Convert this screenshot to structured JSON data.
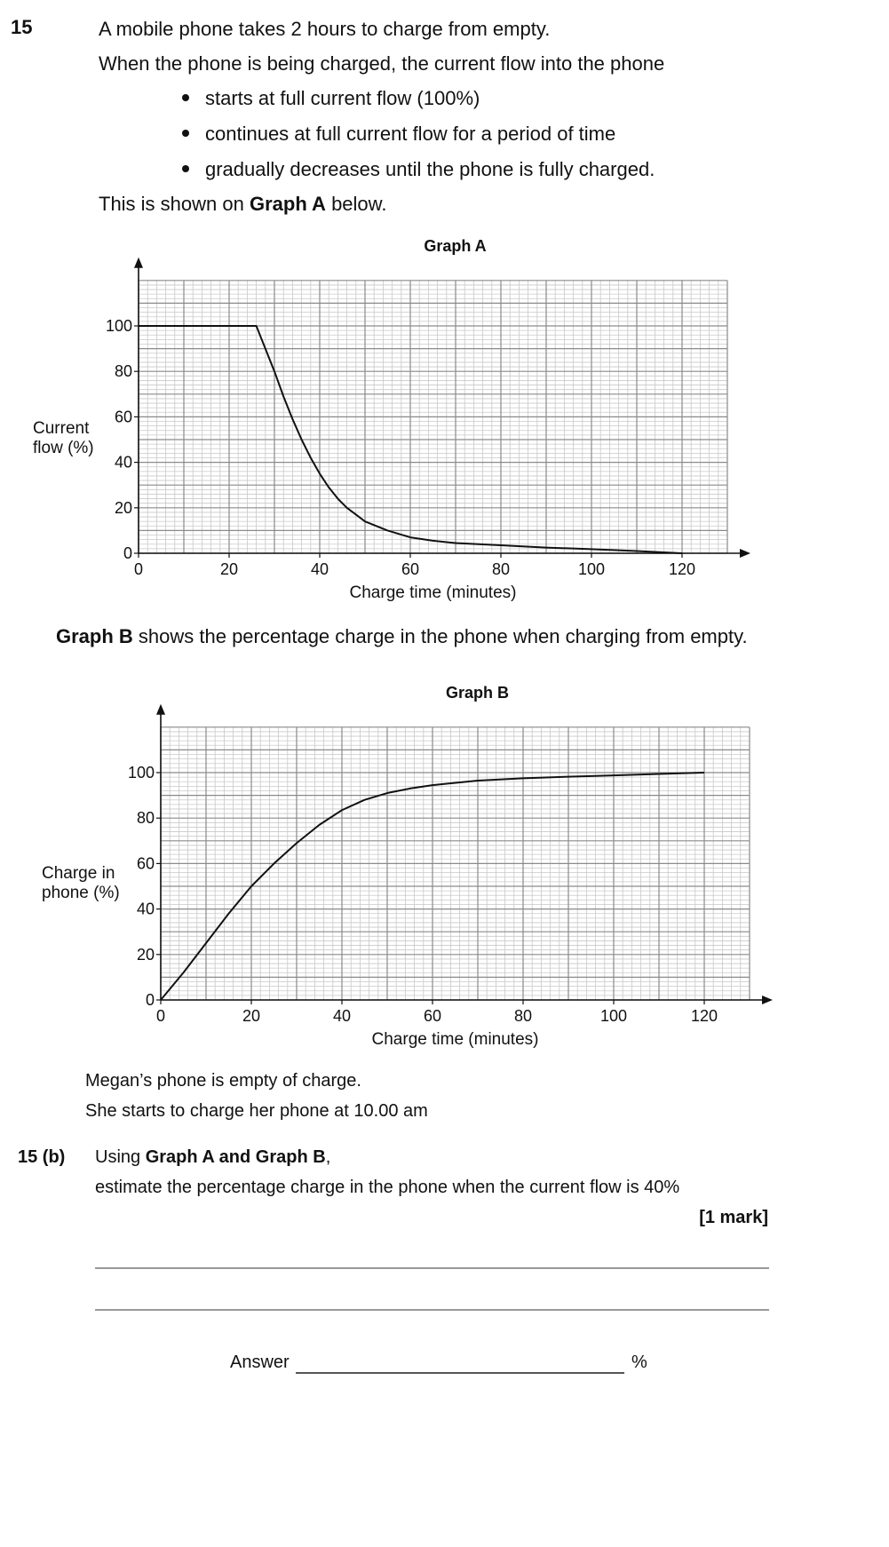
{
  "question": {
    "number": "15",
    "intro_line1": "A mobile phone takes 2 hours to charge from empty.",
    "intro_line2": "When the phone is being charged, the current flow into the phone",
    "bullets": [
      "starts at full current flow (100%)",
      "continues at full current flow for a period of time",
      "gradually decreases until the phone is fully charged."
    ],
    "graph_a_ref_prefix": "This is shown on ",
    "graph_a_ref_bold": "Graph A",
    "graph_a_ref_suffix": " below.",
    "graph_b_intro_bold": "Graph B",
    "graph_b_intro_rest": " shows the percentage charge in the phone when charging from empty.",
    "megan_line1": "Megan’s phone is empty of charge.",
    "megan_line2": "She starts to charge her phone at 10.00 am"
  },
  "part_b": {
    "label": "15  (b)",
    "line1_prefix": "Using ",
    "line1_bold": "Graph A and Graph B",
    "line1_suffix": ",",
    "line2": "estimate the percentage charge in the phone when the current flow is 40%",
    "marks": "[1 mark]",
    "answer_label": "Answer",
    "answer_unit": "%"
  },
  "chart_data": [
    {
      "type": "line",
      "title": "Graph A",
      "xlabel": "Charge time (minutes)",
      "ylabel": "Current flow (%)",
      "ylabel_lines": [
        "Current",
        "flow (%)"
      ],
      "xlim": [
        0,
        130
      ],
      "ylim": [
        0,
        120
      ],
      "x_ticks": [
        0,
        20,
        40,
        60,
        80,
        100,
        120
      ],
      "y_ticks": [
        0,
        20,
        40,
        60,
        80,
        100
      ],
      "grid": true,
      "series": [
        {
          "name": "Current flow",
          "x": [
            0,
            26,
            28,
            30,
            32,
            34,
            36,
            38,
            40,
            42,
            44,
            46,
            48,
            50,
            55,
            60,
            65,
            70,
            80,
            90,
            100,
            110,
            115,
            118,
            120
          ],
          "y": [
            100,
            100,
            90,
            80,
            69,
            59,
            50,
            42,
            35,
            29,
            24,
            20,
            17,
            14,
            10,
            7,
            5.5,
            4.5,
            3.5,
            2.5,
            1.8,
            1,
            0.5,
            0.2,
            0
          ]
        }
      ]
    },
    {
      "type": "line",
      "title": "Graph B",
      "xlabel": "Charge time (minutes)",
      "ylabel": "Charge in phone (%)",
      "ylabel_lines": [
        "Charge in",
        "phone (%)"
      ],
      "xlim": [
        0,
        130
      ],
      "ylim": [
        0,
        120
      ],
      "x_ticks": [
        0,
        20,
        40,
        60,
        80,
        100,
        120
      ],
      "y_ticks": [
        0,
        20,
        40,
        60,
        80,
        100
      ],
      "grid": true,
      "series": [
        {
          "name": "Charge in phone",
          "x": [
            0,
            5,
            10,
            15,
            20,
            25,
            30,
            35,
            40,
            45,
            50,
            55,
            60,
            70,
            80,
            90,
            100,
            110,
            120
          ],
          "y": [
            0,
            12,
            25,
            38,
            50,
            60,
            69,
            77,
            83.5,
            88,
            91,
            93,
            94.5,
            96.5,
            97.5,
            98.2,
            98.8,
            99.4,
            100
          ]
        }
      ]
    }
  ]
}
